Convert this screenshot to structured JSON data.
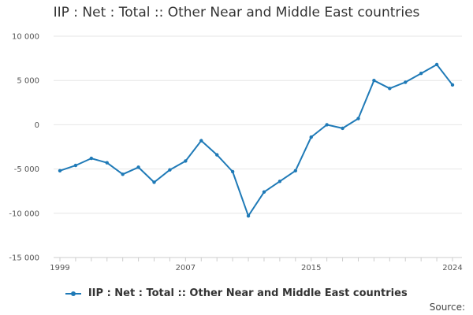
{
  "title": "IIP : Net : Total :: Other Near and Middle East countries",
  "source_label": "Source:",
  "colors": {
    "series": "#1f7ab7",
    "grid": "#e6e6e6",
    "axis": "#cccccc"
  },
  "chart_data": {
    "type": "line",
    "title": "IIP : Net : Total :: Other Near and Middle East countries",
    "xlabel": "",
    "ylabel": "",
    "x": [
      1999,
      2000,
      2001,
      2002,
      2003,
      2004,
      2005,
      2006,
      2007,
      2008,
      2009,
      2010,
      2011,
      2012,
      2013,
      2014,
      2015,
      2016,
      2017,
      2018,
      2019,
      2020,
      2021,
      2022,
      2023,
      2024
    ],
    "x_tick_labels": [
      "1999",
      "2007",
      "2015",
      "2024"
    ],
    "x_tick_values": [
      1999,
      2007,
      2015,
      2024
    ],
    "xlim": [
      1999,
      2024
    ],
    "ylim": [
      -15000,
      10000
    ],
    "y_ticks": [
      10000,
      5000,
      0,
      -5000,
      -10000,
      -15000
    ],
    "y_tick_labels": [
      "10 000",
      "5 000",
      "0",
      "-5 000",
      "-10 000",
      "-15 000"
    ],
    "grid": true,
    "legend_position": "bottom",
    "series": [
      {
        "name": "IIP : Net : Total :: Other Near and Middle East countries",
        "values": [
          -5200,
          -4600,
          -3800,
          -4300,
          -5600,
          -4800,
          -6500,
          -5100,
          -4100,
          -1800,
          -3400,
          -5300,
          -10300,
          -7600,
          -6400,
          -5200,
          -1400,
          0,
          -400,
          700,
          5000,
          4100,
          4800,
          5800,
          6800,
          4500
        ]
      }
    ]
  }
}
